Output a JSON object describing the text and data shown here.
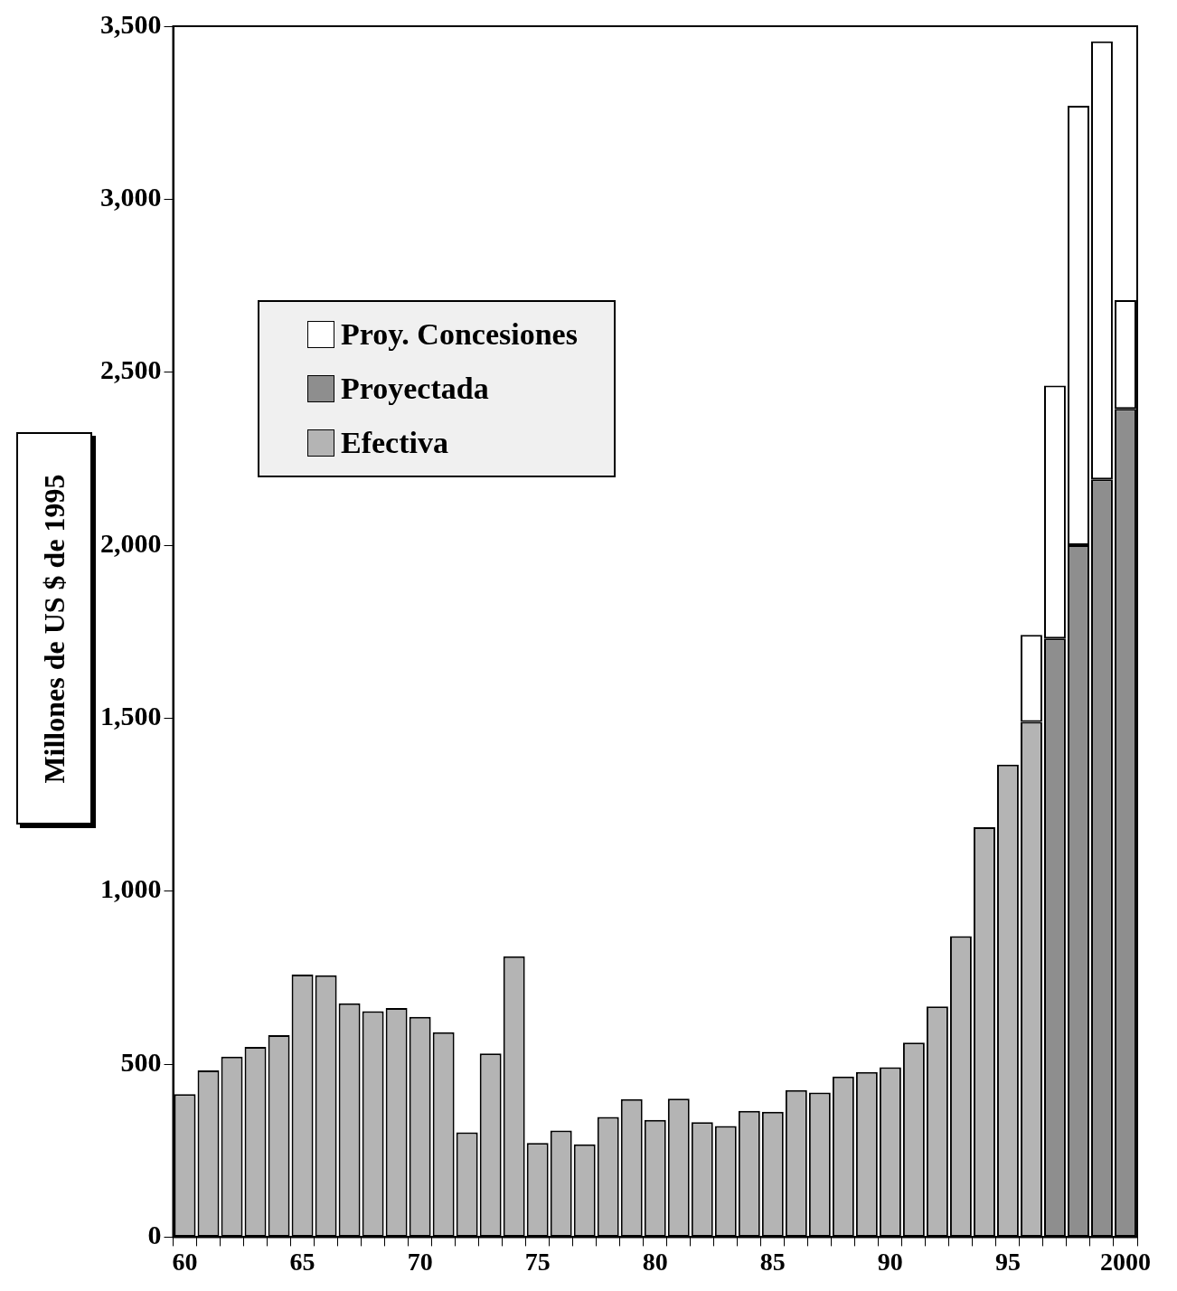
{
  "chart_data": {
    "type": "bar",
    "stacked": true,
    "ylabel": "Millones de US $ de 1995",
    "legend": "top left",
    "grid": false,
    "categories": [
      "60",
      null,
      null,
      null,
      null,
      "65",
      null,
      null,
      null,
      null,
      "70",
      null,
      null,
      null,
      null,
      "75",
      null,
      null,
      null,
      null,
      "80",
      null,
      null,
      null,
      null,
      "85",
      null,
      null,
      null,
      null,
      "90",
      null,
      null,
      null,
      null,
      "95",
      null,
      null,
      null,
      null,
      "2000"
    ],
    "ylim": [
      0,
      3500
    ],
    "yticks": [
      0,
      500,
      {
        "value": 1000,
        "label": "1,000"
      },
      {
        "value": 1500,
        "label": "1,500"
      },
      {
        "value": 2000,
        "label": "2,000"
      },
      {
        "value": 2500,
        "label": "2,500"
      },
      {
        "value": 3000,
        "label": "3,000"
      },
      {
        "value": 3500,
        "label": "3,500"
      }
    ],
    "series": [
      {
        "name": "Efectiva",
        "color": "#b4b4b4",
        "values": [
          413,
          482,
          522,
          550,
          584,
          759,
          757,
          676,
          653,
          662,
          637,
          592,
          303,
          531,
          812,
          272,
          308,
          268,
          347,
          399,
          339,
          400,
          332,
          321,
          365,
          362,
          425,
          418,
          464,
          477,
          491,
          562,
          667,
          870,
          1185,
          1366,
          1489,
          null,
          null,
          null,
          null
        ]
      },
      {
        "name": "Proyectada",
        "color": "#8e8e8e",
        "values": [
          null,
          null,
          null,
          null,
          null,
          null,
          null,
          null,
          null,
          null,
          null,
          null,
          null,
          null,
          null,
          null,
          null,
          null,
          null,
          null,
          null,
          null,
          null,
          null,
          null,
          null,
          null,
          null,
          null,
          null,
          null,
          null,
          null,
          null,
          null,
          null,
          null,
          1730,
          2000,
          2190,
          2394
        ]
      },
      {
        "name": "Proy. Concesiones",
        "color": "#ffffff",
        "values": [
          null,
          null,
          null,
          null,
          null,
          null,
          null,
          null,
          null,
          null,
          null,
          null,
          null,
          null,
          null,
          null,
          null,
          null,
          null,
          null,
          null,
          null,
          null,
          null,
          null,
          null,
          null,
          null,
          null,
          null,
          null,
          null,
          null,
          null,
          null,
          null,
          252,
          731,
          1270,
          1266,
          314
        ]
      }
    ]
  }
}
